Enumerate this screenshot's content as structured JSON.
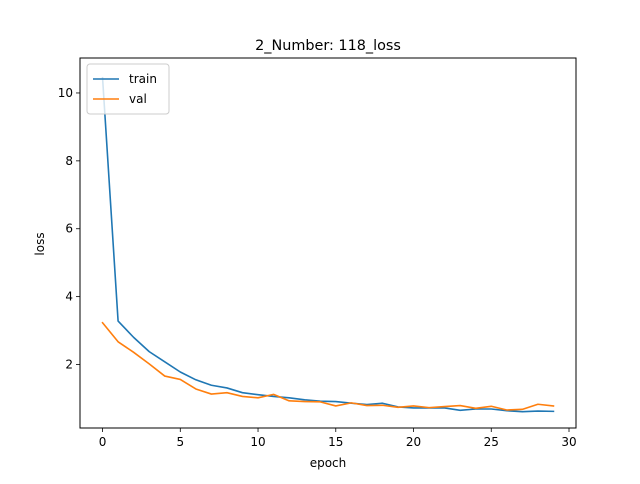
{
  "chart_data": {
    "type": "line",
    "title": "2_Number: 118_loss",
    "xlabel": "epoch",
    "ylabel": "loss",
    "xlim": [
      -1.45,
      30.45
    ],
    "ylim": [
      0.13,
      11.03
    ],
    "xticks": [
      0,
      5,
      10,
      15,
      20,
      25,
      30
    ],
    "yticks": [
      2,
      4,
      6,
      8,
      10
    ],
    "grid": false,
    "legend": "top-left",
    "series": [
      {
        "name": "train",
        "color": "#1f77b4",
        "x": [
          0,
          1,
          2,
          3,
          4,
          5,
          6,
          7,
          8,
          9,
          10,
          11,
          12,
          13,
          14,
          15,
          16,
          17,
          18,
          19,
          20,
          21,
          22,
          23,
          24,
          25,
          26,
          27,
          28,
          29
        ],
        "values": [
          10.45,
          3.28,
          2.8,
          2.38,
          2.08,
          1.78,
          1.55,
          1.39,
          1.31,
          1.17,
          1.11,
          1.06,
          1.02,
          0.96,
          0.92,
          0.91,
          0.86,
          0.82,
          0.86,
          0.75,
          0.72,
          0.72,
          0.72,
          0.65,
          0.69,
          0.69,
          0.64,
          0.61,
          0.63,
          0.62
        ]
      },
      {
        "name": "val",
        "color": "#ff7f0e",
        "x": [
          0,
          1,
          2,
          3,
          4,
          5,
          6,
          7,
          8,
          9,
          10,
          11,
          12,
          13,
          14,
          15,
          16,
          17,
          18,
          19,
          20,
          21,
          22,
          23,
          24,
          25,
          26,
          27,
          28,
          29
        ],
        "values": [
          3.23,
          2.67,
          2.36,
          2.02,
          1.66,
          1.56,
          1.28,
          1.13,
          1.17,
          1.06,
          1.02,
          1.12,
          0.93,
          0.91,
          0.9,
          0.78,
          0.87,
          0.79,
          0.8,
          0.74,
          0.78,
          0.73,
          0.76,
          0.79,
          0.71,
          0.77,
          0.66,
          0.68,
          0.83,
          0.78
        ]
      }
    ]
  }
}
